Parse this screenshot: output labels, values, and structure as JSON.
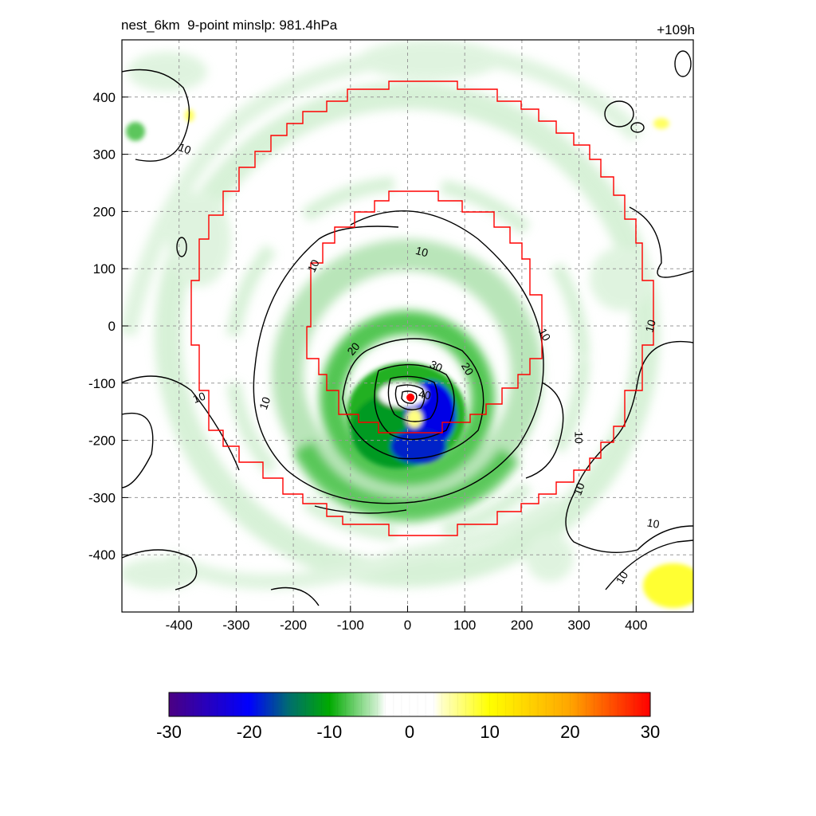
{
  "title_left": "nest_6km  9-point minslp: 981.4hPa",
  "title_right": "+109h",
  "colors": {
    "outer_box": "#ff0000",
    "storm_center": "#ff0000",
    "contour": "#000000",
    "grid": "#999999"
  },
  "chart_data": {
    "type": "heatmap",
    "title": "nest_6km  9-point minslp: 981.4hPa",
    "forecast_hour_label": "+109h",
    "xlabel": "",
    "ylabel": "",
    "xlim": [
      -500,
      500
    ],
    "ylim": [
      -500,
      500
    ],
    "x_ticks": [
      -400,
      -300,
      -200,
      -100,
      0,
      100,
      200,
      300,
      400
    ],
    "y_ticks": [
      400,
      300,
      200,
      100,
      0,
      -100,
      -200,
      -300,
      -400
    ],
    "grid": true,
    "storm_center": [
      5,
      -125
    ],
    "colorbar": {
      "min": -30,
      "max": 30,
      "ticks": [
        -30,
        -20,
        -10,
        0,
        10,
        20,
        30
      ],
      "stops": [
        {
          "v": -30,
          "c": "#4b0082"
        },
        {
          "v": -20,
          "c": "#0000ff"
        },
        {
          "v": -15,
          "c": "#006e6e"
        },
        {
          "v": -10,
          "c": "#00aa00"
        },
        {
          "v": -4,
          "c": "#cff0cf"
        },
        {
          "v": -3,
          "c": "#ffffff"
        },
        {
          "v": 3,
          "c": "#ffffff"
        },
        {
          "v": 4,
          "c": "#ffffc8"
        },
        {
          "v": 10,
          "c": "#ffff00"
        },
        {
          "v": 20,
          "c": "#ffa500"
        },
        {
          "v": 30,
          "c": "#ff0000"
        }
      ]
    },
    "contour_labels": [
      {
        "text": "10",
        "x": -390,
        "y": 310,
        "rot": 20
      },
      {
        "text": "10",
        "x": -365,
        "y": -125,
        "rot": -20
      },
      {
        "text": "10",
        "x": -250,
        "y": -135,
        "rot": -70
      },
      {
        "text": "10",
        "x": -165,
        "y": 105,
        "rot": -65
      },
      {
        "text": "10",
        "x": 25,
        "y": 130,
        "rot": 15
      },
      {
        "text": "10",
        "x": 240,
        "y": -15,
        "rot": 60
      },
      {
        "text": "10",
        "x": 425,
        "y": 0,
        "rot": -75
      },
      {
        "text": "10",
        "x": 300,
        "y": -195,
        "rot": 90
      },
      {
        "text": "10",
        "x": 300,
        "y": -285,
        "rot": -70
      },
      {
        "text": "10",
        "x": 430,
        "y": -345,
        "rot": 10
      },
      {
        "text": "10",
        "x": 375,
        "y": -440,
        "rot": -60
      },
      {
        "text": "20",
        "x": -95,
        "y": -40,
        "rot": -50
      },
      {
        "text": "20",
        "x": 105,
        "y": -75,
        "rot": 60
      },
      {
        "text": "30",
        "x": 50,
        "y": -70,
        "rot": 25
      },
      {
        "text": "40",
        "x": 30,
        "y": -120,
        "rot": 10
      }
    ]
  }
}
